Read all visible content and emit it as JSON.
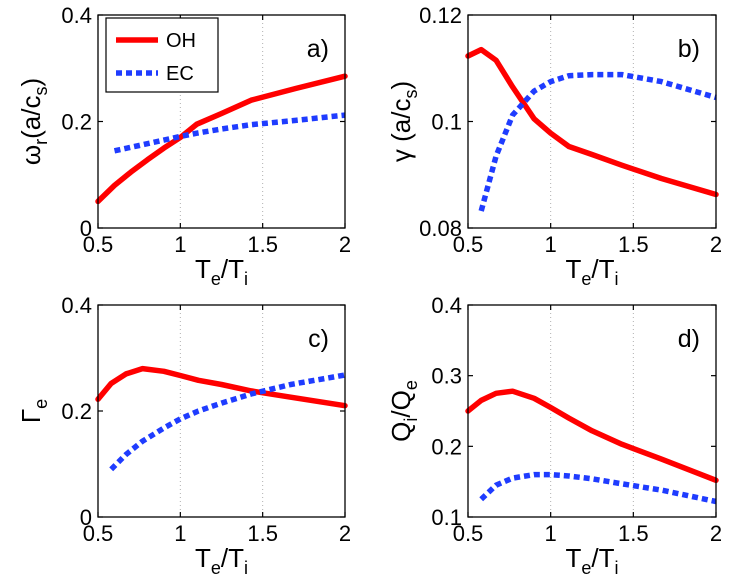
{
  "chart_data": [
    {
      "type": "line",
      "panel_label": "a)",
      "ylabel": {
        "base": "ω",
        "sub": "r",
        "mid": "(a/c",
        "sub2": "s",
        "tail": ")"
      },
      "xlabel": {
        "base": "T",
        "sub": "e",
        "mid": "/T",
        "sub2": "i"
      },
      "xlim": [
        0.5,
        2
      ],
      "ylim": [
        0,
        0.4
      ],
      "xticks": [
        "0.5",
        "1",
        "1.5",
        "2"
      ],
      "xtick_values": [
        0.5,
        1,
        1.5,
        2
      ],
      "yticks": [
        "0",
        "0.2",
        "0.4"
      ],
      "ytick_values": [
        0,
        0.2,
        0.4
      ],
      "grid": "vertical dotted",
      "legend": {
        "location": "top-left",
        "entries": [
          "OH",
          "EC"
        ]
      },
      "series": [
        {
          "name": "OH",
          "color": "#ff0000",
          "style": "solid",
          "x": [
            0.5,
            0.6,
            0.7,
            0.8,
            0.9,
            1.0,
            1.1,
            1.25,
            1.43,
            1.7,
            2.0
          ],
          "y": [
            0.05,
            0.08,
            0.105,
            0.128,
            0.15,
            0.17,
            0.195,
            0.215,
            0.24,
            0.262,
            0.285
          ]
        },
        {
          "name": "EC",
          "color": "#1f3cff",
          "style": "dotted",
          "x": [
            0.6,
            0.75,
            0.9,
            1.0,
            1.1,
            1.25,
            1.43,
            1.7,
            2.0
          ],
          "y": [
            0.145,
            0.155,
            0.165,
            0.172,
            0.178,
            0.186,
            0.194,
            0.202,
            0.212
          ]
        }
      ]
    },
    {
      "type": "line",
      "panel_label": "b)",
      "ylabel": {
        "base": "γ",
        "sub": "",
        "mid": " (a/c",
        "sub2": "s",
        "tail": ")"
      },
      "xlabel": {
        "base": "T",
        "sub": "e",
        "mid": "/T",
        "sub2": "i"
      },
      "xlim": [
        0.5,
        2
      ],
      "ylim": [
        0.08,
        0.12
      ],
      "xticks": [
        "0.5",
        "1",
        "1.5",
        "2"
      ],
      "xtick_values": [
        0.5,
        1,
        1.5,
        2
      ],
      "yticks": [
        "0.08",
        "0.1",
        "0.12"
      ],
      "ytick_values": [
        0.08,
        0.1,
        0.12
      ],
      "grid": "vertical dotted",
      "series": [
        {
          "name": "OH",
          "color": "#ff0000",
          "style": "solid",
          "x": [
            0.5,
            0.58,
            0.67,
            0.77,
            0.9,
            1.0,
            1.11,
            1.25,
            1.43,
            1.67,
            2.0
          ],
          "y": [
            0.1123,
            0.1135,
            0.1115,
            0.1065,
            0.1005,
            0.0978,
            0.0953,
            0.0938,
            0.0918,
            0.0893,
            0.0863
          ]
        },
        {
          "name": "EC",
          "color": "#1f3cff",
          "style": "dotted",
          "x": [
            0.58,
            0.67,
            0.77,
            0.9,
            1.0,
            1.11,
            1.25,
            1.43,
            1.67,
            2.0
          ],
          "y": [
            0.0832,
            0.0935,
            0.1012,
            0.1057,
            0.1075,
            0.1086,
            0.1088,
            0.1088,
            0.1075,
            0.1045
          ]
        }
      ]
    },
    {
      "type": "line",
      "panel_label": "c)",
      "ylabel": {
        "base": "Γ",
        "sub": "e",
        "mid": "",
        "sub2": "",
        "tail": ""
      },
      "xlabel": {
        "base": "T",
        "sub": "e",
        "mid": "/T",
        "sub2": "i"
      },
      "xlim": [
        0.5,
        2
      ],
      "ylim": [
        0,
        0.4
      ],
      "xticks": [
        "0.5",
        "1",
        "1.5",
        "2"
      ],
      "xtick_values": [
        0.5,
        1,
        1.5,
        2
      ],
      "yticks": [
        "0",
        "0.2",
        "0.4"
      ],
      "ytick_values": [
        0,
        0.2,
        0.4
      ],
      "grid": "vertical dotted",
      "series": [
        {
          "name": "OH",
          "color": "#ff0000",
          "style": "solid",
          "x": [
            0.5,
            0.58,
            0.67,
            0.77,
            0.9,
            1.0,
            1.11,
            1.25,
            1.43,
            1.67,
            2.0
          ],
          "y": [
            0.222,
            0.252,
            0.27,
            0.28,
            0.275,
            0.267,
            0.258,
            0.25,
            0.238,
            0.226,
            0.21
          ]
        },
        {
          "name": "EC",
          "color": "#1f3cff",
          "style": "dotted",
          "x": [
            0.58,
            0.67,
            0.77,
            0.9,
            1.0,
            1.11,
            1.25,
            1.43,
            1.67,
            2.0
          ],
          "y": [
            0.09,
            0.118,
            0.143,
            0.168,
            0.185,
            0.2,
            0.215,
            0.232,
            0.25,
            0.268
          ]
        }
      ]
    },
    {
      "type": "line",
      "panel_label": "d)",
      "ylabel": {
        "base": "Q",
        "sub": "i",
        "mid": "/Q",
        "sub2": "e",
        "tail": ""
      },
      "xlabel": {
        "base": "T",
        "sub": "e",
        "mid": "/T",
        "sub2": "i"
      },
      "xlim": [
        0.5,
        2
      ],
      "ylim": [
        0.1,
        0.4
      ],
      "xticks": [
        "0.5",
        "1",
        "1.5",
        "2"
      ],
      "xtick_values": [
        0.5,
        1,
        1.5,
        2
      ],
      "yticks": [
        "0.1",
        "0.2",
        "0.3",
        "0.4"
      ],
      "ytick_values": [
        0.1,
        0.2,
        0.3,
        0.4
      ],
      "grid": "vertical dotted",
      "series": [
        {
          "name": "OH",
          "color": "#ff0000",
          "style": "solid",
          "x": [
            0.5,
            0.58,
            0.67,
            0.77,
            0.9,
            1.0,
            1.11,
            1.25,
            1.43,
            1.67,
            2.0
          ],
          "y": [
            0.25,
            0.265,
            0.275,
            0.278,
            0.268,
            0.255,
            0.24,
            0.222,
            0.203,
            0.182,
            0.152
          ]
        },
        {
          "name": "EC",
          "color": "#1f3cff",
          "style": "dotted",
          "x": [
            0.58,
            0.67,
            0.77,
            0.9,
            1.0,
            1.11,
            1.25,
            1.43,
            1.67,
            2.0
          ],
          "y": [
            0.125,
            0.145,
            0.155,
            0.16,
            0.16,
            0.158,
            0.154,
            0.147,
            0.138,
            0.122
          ]
        }
      ]
    }
  ]
}
